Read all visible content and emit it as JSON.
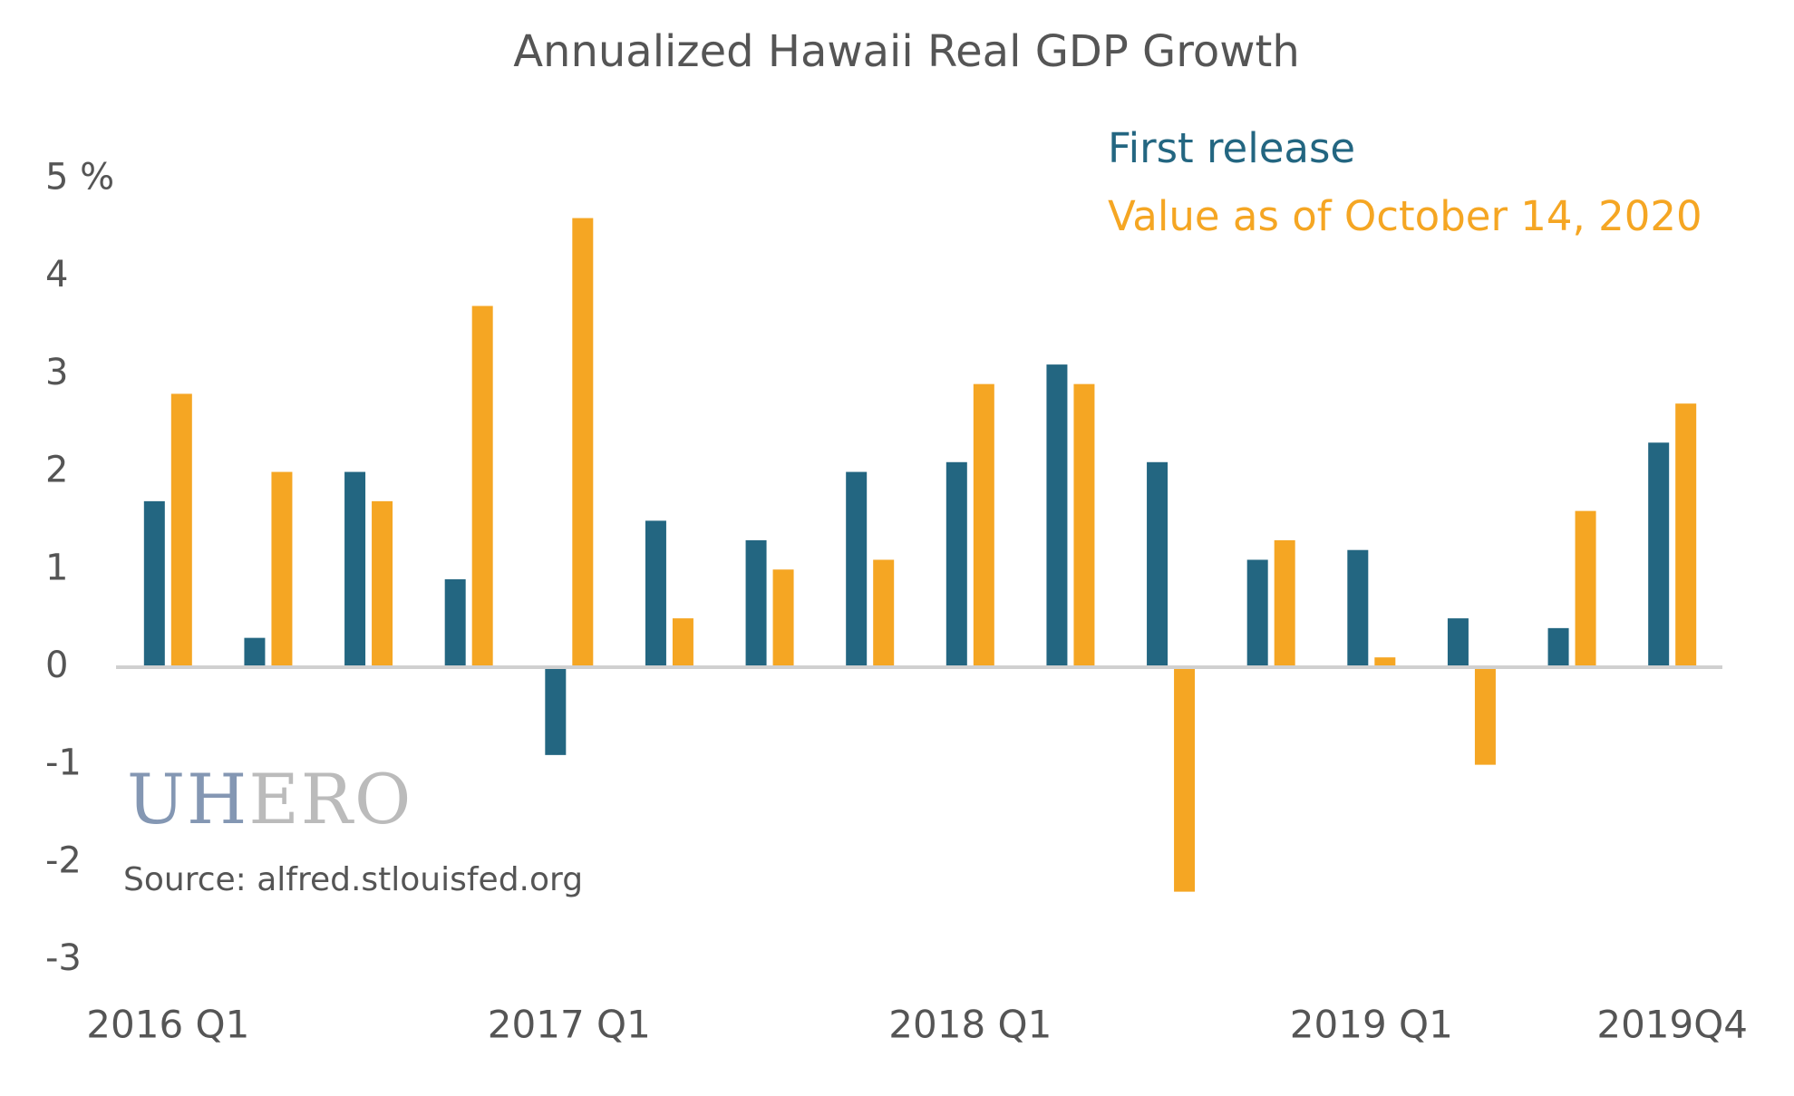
{
  "chart_data": {
    "type": "bar",
    "title": "Annualized Hawaii Real GDP Growth",
    "categories": [
      "2016 Q1",
      null,
      null,
      null,
      "2017 Q1",
      null,
      null,
      null,
      "2018 Q1",
      null,
      null,
      null,
      "2019 Q1",
      null,
      null,
      "2019Q4"
    ],
    "series": [
      {
        "name": "First release",
        "color": "#236681",
        "values": [
          1.7,
          0.3,
          2.0,
          0.9,
          -0.9,
          1.5,
          1.3,
          2.0,
          2.1,
          3.1,
          2.1,
          1.1,
          1.2,
          0.5,
          0.4,
          2.3
        ]
      },
      {
        "name": "Value as of October 14, 2020",
        "color": "#f5a623",
        "values": [
          2.8,
          2.0,
          1.7,
          3.7,
          4.6,
          0.5,
          1.0,
          1.1,
          2.9,
          2.9,
          -2.3,
          1.3,
          0.1,
          -1.0,
          1.6,
          2.7
        ]
      }
    ],
    "ylim": [
      -3,
      5
    ],
    "yticks": [
      -3,
      -2,
      -1,
      0,
      1,
      2,
      3,
      4,
      {
        "value": 5,
        "label": "5 %"
      }
    ],
    "logo_parts": [
      "UH",
      "ERO"
    ],
    "source": "Source: alfred.stlouisfed.org"
  }
}
